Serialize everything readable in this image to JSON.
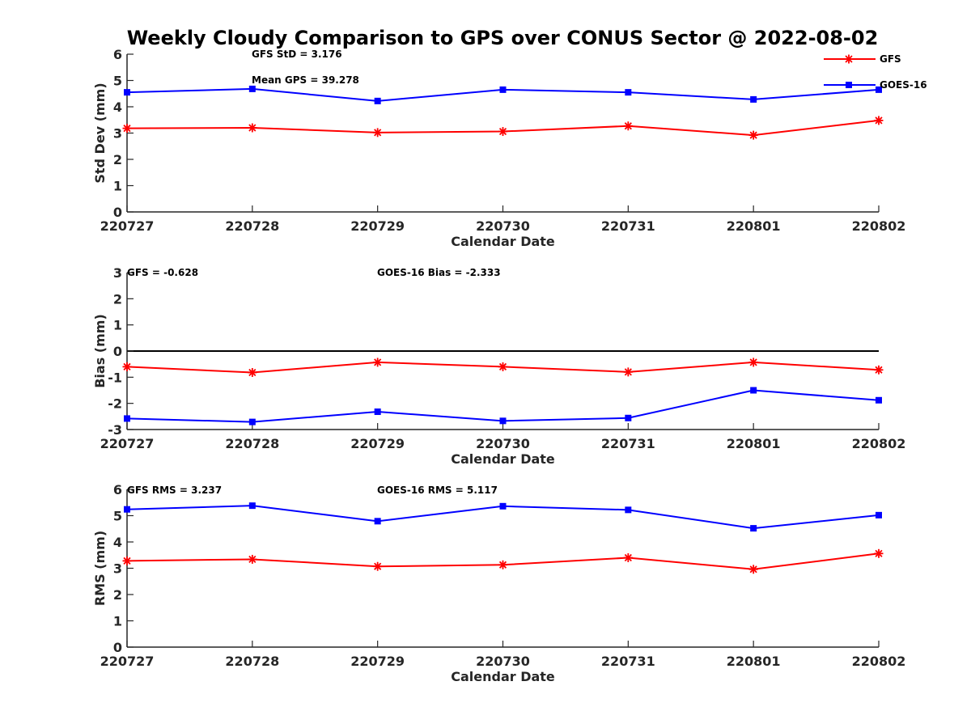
{
  "chart_data": {
    "type": "line",
    "title": "Weekly Cloudy Comparison to GPS over CONUS Sector @ 2022-08-02",
    "legend": {
      "placement": "top-right",
      "entries": [
        "GFS",
        "GOES-16"
      ]
    },
    "colors": {
      "GFS": "#ff0000",
      "GOES-16": "#0000ff",
      "zero_line": "#000000",
      "axis": "#262626"
    },
    "markers": {
      "GFS": "asterisk",
      "GOES-16": "square"
    },
    "categories": [
      "220727",
      "220728",
      "220729",
      "220730",
      "220731",
      "220801",
      "220802"
    ],
    "panels": [
      {
        "id": "std",
        "ylabel": "Std Dev (mm)",
        "xlabel": "Calendar Date",
        "ylim": [
          0,
          6
        ],
        "yticks": [
          0,
          1,
          2,
          3,
          4,
          5,
          6
        ],
        "grid": false,
        "series": [
          {
            "name": "GFS",
            "values": [
              3.18,
              3.2,
              3.02,
              3.06,
              3.27,
              2.92,
              3.48
            ]
          },
          {
            "name": "GOES-16",
            "values": [
              4.55,
              4.68,
              4.22,
              4.65,
              4.55,
              4.28,
              4.65
            ]
          }
        ],
        "annotations": [
          {
            "id": "std-note-1",
            "text": "GFS StD = 3.176"
          },
          {
            "id": "std-note-2",
            "text": "Mean GPS = 39.278"
          }
        ]
      },
      {
        "id": "bias",
        "ylabel": "Bias (mm)",
        "xlabel": "Calendar Date",
        "ylim": [
          -3,
          3
        ],
        "yticks": [
          -3,
          -2,
          -1,
          0,
          1,
          2,
          3
        ],
        "grid": false,
        "zero_line": true,
        "series": [
          {
            "name": "GFS",
            "values": [
              -0.6,
              -0.82,
              -0.43,
              -0.6,
              -0.8,
              -0.43,
              -0.72
            ]
          },
          {
            "name": "GOES-16",
            "values": [
              -2.58,
              -2.71,
              -2.32,
              -2.67,
              -2.56,
              -1.5,
              -1.88
            ]
          }
        ],
        "annotations": [
          {
            "id": "bias-note-1",
            "text": "GFS = -0.628"
          },
          {
            "id": "bias-note-2",
            "text": "GOES-16 Bias  = -2.333"
          }
        ]
      },
      {
        "id": "rms",
        "ylabel": "RMS (mm)",
        "xlabel": "Calendar Date",
        "ylim": [
          0,
          6
        ],
        "yticks": [
          0,
          1,
          2,
          3,
          4,
          5,
          6
        ],
        "grid": false,
        "series": [
          {
            "name": "GFS",
            "values": [
              3.28,
              3.34,
              3.07,
              3.13,
              3.4,
              2.96,
              3.56
            ]
          },
          {
            "name": "GOES-16",
            "values": [
              5.24,
              5.38,
              4.79,
              5.36,
              5.22,
              4.52,
              5.02
            ]
          }
        ],
        "annotations": [
          {
            "id": "rms-note-1",
            "text": "GFS RMS = 3.237"
          },
          {
            "id": "rms-note-2",
            "text": "GOES-16 RMS = 5.117"
          }
        ]
      }
    ]
  }
}
